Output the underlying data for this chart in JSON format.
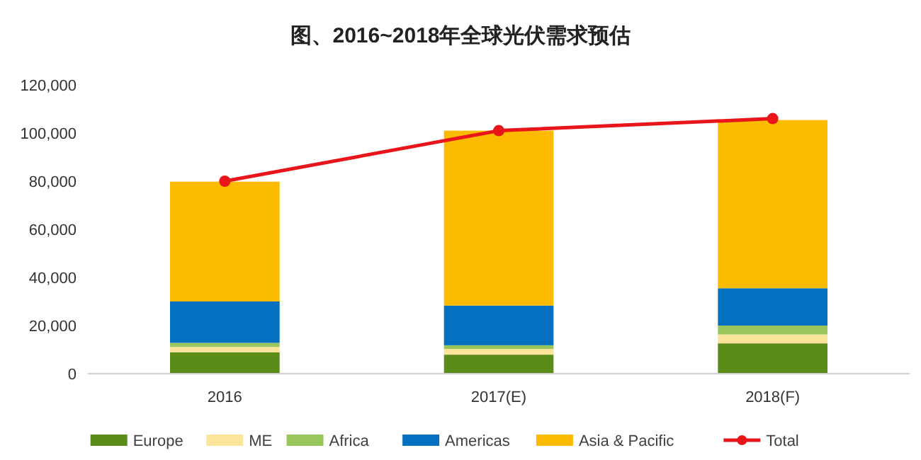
{
  "chart_data": {
    "type": "bar",
    "stacked": true,
    "title": "图、2016~2018年全球光伏需求预估",
    "categories": [
      "2016",
      "2017(E)",
      "2018(F)"
    ],
    "series": [
      {
        "name": "Europe",
        "color": "#5b8c1a",
        "values": [
          8900,
          7900,
          12600
        ]
      },
      {
        "name": "ME",
        "color": "#fbe59a",
        "values": [
          2200,
          2400,
          3700
        ]
      },
      {
        "name": "Africa",
        "color": "#99c65a",
        "values": [
          1700,
          1500,
          3700
        ]
      },
      {
        "name": "Americas",
        "color": "#0670c0",
        "values": [
          17200,
          16500,
          15500
        ]
      },
      {
        "name": "Asia & Pacific",
        "color": "#fdbb00",
        "values": [
          49800,
          72700,
          69900
        ]
      },
      {
        "name": "Total",
        "type": "line",
        "color": "#e8161b",
        "values": [
          80000,
          101000,
          106000
        ],
        "marker": "circle"
      }
    ],
    "ylim": [
      0,
      120000
    ],
    "yticks": [
      {
        "value": 0,
        "label": "0"
      },
      {
        "value": 20000,
        "label": "20,000"
      },
      {
        "value": 40000,
        "label": "40,000"
      },
      {
        "value": 60000,
        "label": "60,000"
      },
      {
        "value": 80000,
        "label": "80,000"
      },
      {
        "value": 100000,
        "label": "100,000"
      },
      {
        "value": 120000,
        "label": "120,000"
      }
    ],
    "grid": false,
    "legend": "bottom"
  }
}
